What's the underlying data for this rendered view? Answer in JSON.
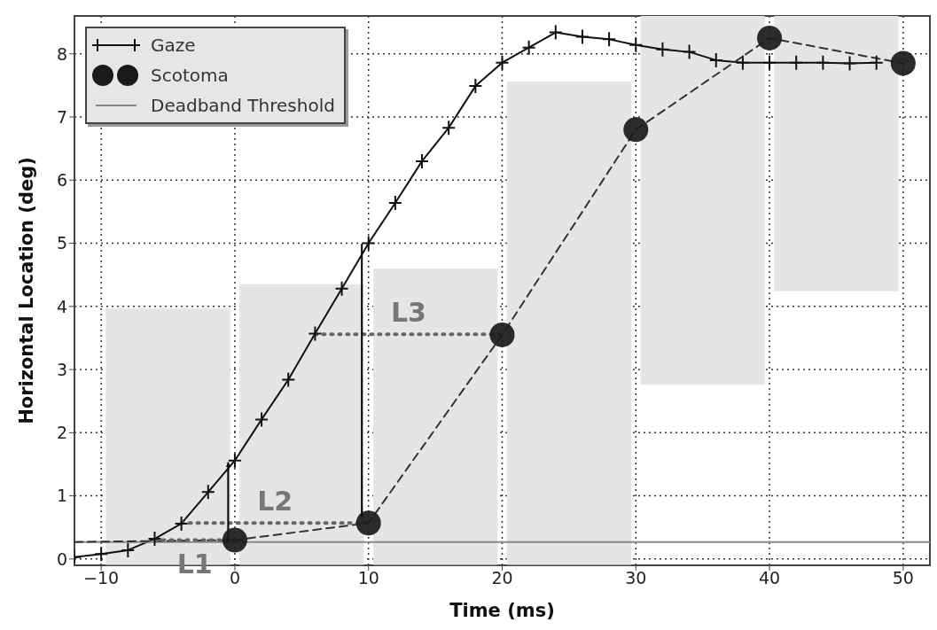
{
  "chart_data": {
    "type": "line",
    "xlabel": "Time (ms)",
    "ylabel": "Horizontal Location (deg)",
    "xlim": [
      -12,
      52
    ],
    "ylim": [
      -0.1,
      8.6
    ],
    "xticks": [
      -10,
      0,
      10,
      20,
      30,
      40,
      50
    ],
    "yticks": [
      0,
      1,
      2,
      3,
      4,
      5,
      6,
      7,
      8
    ],
    "grid": true,
    "legend": "top left",
    "series": [
      {
        "type": "bar",
        "color": "#e5e5e5",
        "x": [
          -5,
          5,
          15,
          25,
          35,
          45
        ],
        "base": [
          -0.1,
          -0.1,
          -0.1,
          -0.1,
          2.76,
          4.24
        ],
        "values": [
          4.07,
          4.45,
          4.7,
          7.66,
          5.84,
          4.36
        ]
      },
      {
        "name": "Gaze",
        "color": "#111111",
        "line_style": "solid",
        "marker": "cross",
        "x": [
          -12,
          -10,
          -8,
          -6,
          -4,
          -2,
          0,
          2,
          4,
          6,
          8,
          10,
          12,
          14,
          16,
          18,
          20,
          22,
          24,
          26,
          28,
          30,
          32,
          34,
          36,
          38,
          40,
          42,
          44,
          46,
          48
        ],
        "values": [
          0.03,
          0.08,
          0.14,
          0.32,
          0.56,
          1.06,
          1.56,
          2.21,
          2.84,
          3.57,
          4.28,
          5.0,
          5.64,
          6.3,
          6.83,
          7.49,
          7.86,
          8.1,
          8.34,
          8.27,
          8.23,
          8.14,
          8.07,
          8.03,
          7.9,
          7.86,
          7.86,
          7.86,
          7.86,
          7.85,
          7.86
        ]
      },
      {
        "type": "scatter",
        "name": "Scotoma",
        "color": "#1a1a1a",
        "marker": "circle",
        "x": [
          0,
          10,
          20,
          30,
          40,
          50
        ],
        "values": [
          0.3,
          0.57,
          3.55,
          6.8,
          8.25,
          7.85
        ]
      },
      {
        "name": "Deadband Threshold",
        "color": "#888888",
        "line_style": "solid",
        "marker": "none",
        "x": [
          -12,
          52
        ],
        "values": [
          0.27,
          0.27
        ]
      },
      {
        "color": "#333333",
        "line_style": "dashed",
        "marker": "none",
        "x": [
          -12,
          0,
          10,
          20,
          30,
          40,
          50
        ],
        "values": [
          0.27,
          0.3,
          0.57,
          3.55,
          6.8,
          8.25,
          7.85
        ]
      },
      {
        "color": "#666666",
        "line_style": "dotted",
        "marker": "none",
        "x": [
          -6,
          0
        ],
        "values": [
          0.3,
          0.3
        ]
      },
      {
        "color": "#666666",
        "line_style": "dotted",
        "marker": "none",
        "x": [
          -4,
          10
        ],
        "values": [
          0.57,
          0.57
        ]
      },
      {
        "color": "#666666",
        "line_style": "dotted",
        "marker": "none",
        "x": [
          6,
          20
        ],
        "values": [
          3.56,
          3.56
        ]
      },
      {
        "color": "#000000",
        "line_style": "solid",
        "marker": "none",
        "x": [
          -0.5,
          -0.5
        ],
        "values": [
          0.32,
          1.52
        ]
      },
      {
        "color": "#000000",
        "line_style": "solid",
        "marker": "none",
        "x": [
          9.5,
          9.5
        ],
        "values": [
          4.98,
          0.65
        ]
      }
    ],
    "annotations": [
      "L1",
      "L2",
      "L3"
    ]
  }
}
